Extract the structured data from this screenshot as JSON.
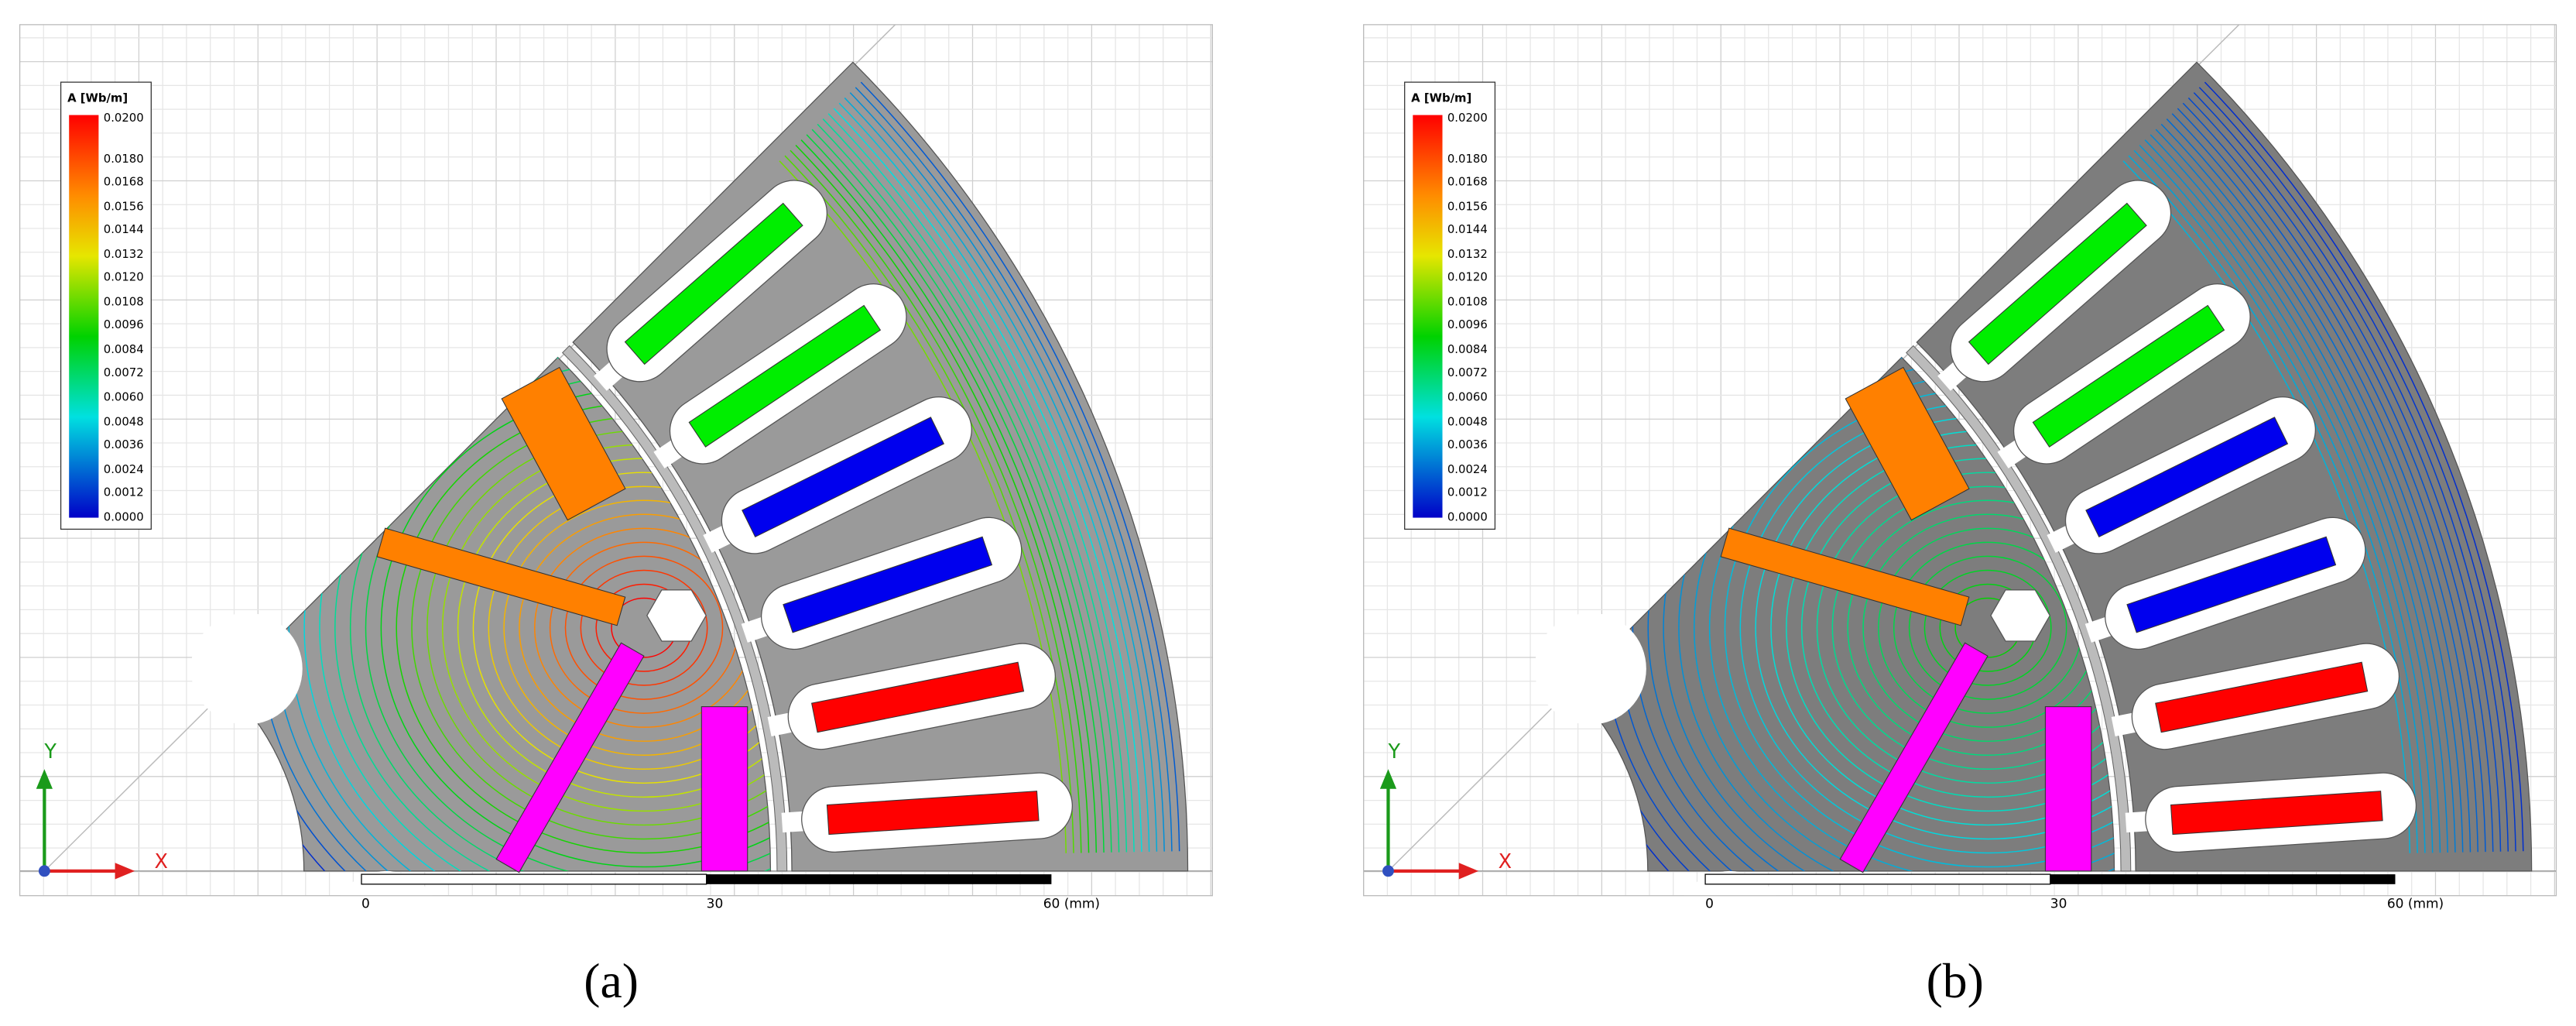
{
  "panels": [
    {
      "caption": "(a)",
      "legend": {
        "title": "A [Wb/m]",
        "labels": [
          "0.0200",
          "0.0180",
          "0.0168",
          "0.0156",
          "0.0144",
          "0.0132",
          "0.0120",
          "0.0108",
          "0.0096",
          "0.0084",
          "0.0072",
          "0.0060",
          "0.0048",
          "0.0036",
          "0.0024",
          "0.0012",
          "0.0000"
        ]
      },
      "axes": {
        "x": "X",
        "y": "Y"
      },
      "scale": [
        "0",
        "30",
        "60 (mm)"
      ]
    },
    {
      "caption": "(b)",
      "legend": {
        "title": "A [Wb/m]",
        "labels": [
          "0.0200",
          "0.0180",
          "0.0168",
          "0.0156",
          "0.0144",
          "0.0132",
          "0.0120",
          "0.0108",
          "0.0096",
          "0.0084",
          "0.0072",
          "0.0060",
          "0.0048",
          "0.0036",
          "0.0024",
          "0.0012",
          "0.0000"
        ]
      },
      "axes": {
        "x": "X",
        "y": "Y"
      },
      "scale": [
        "0",
        "30",
        "60 (mm)"
      ]
    }
  ]
}
